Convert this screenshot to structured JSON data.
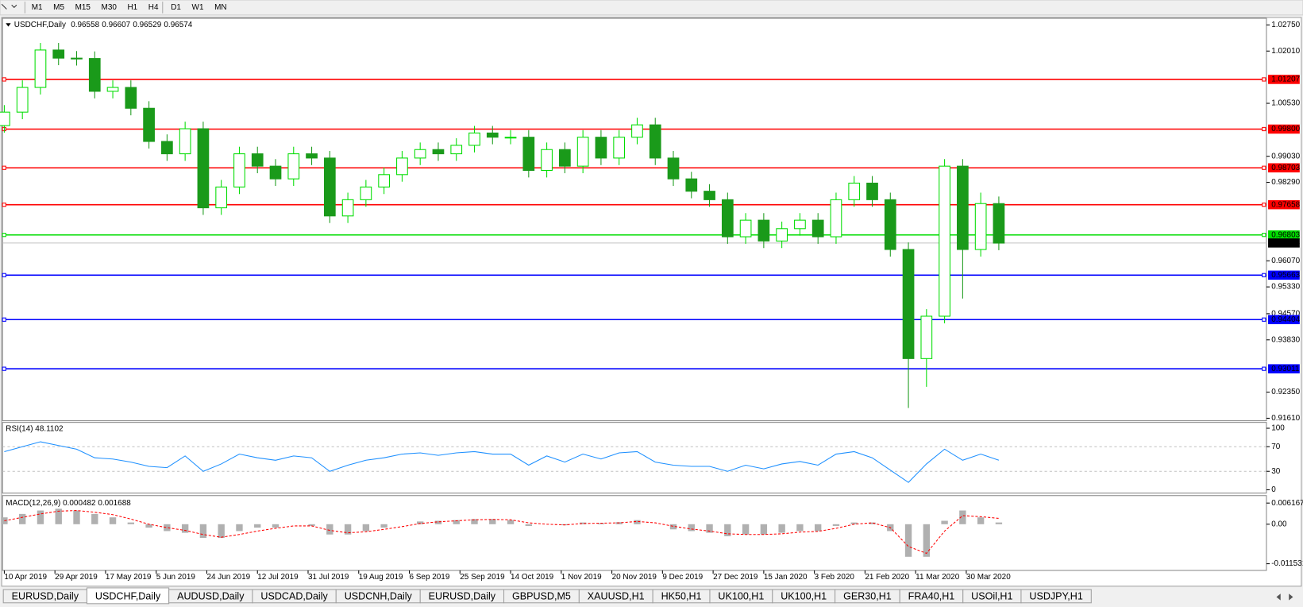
{
  "toolbar": {
    "timeframes": [
      "M1",
      "M5",
      "M15",
      "M30",
      "H1",
      "H4",
      "D1",
      "W1",
      "MN"
    ]
  },
  "tabs": {
    "items": [
      "EURUSD,Daily",
      "USDCHF,Daily",
      "AUDUSD,Daily",
      "USDCAD,Daily",
      "USDCNH,Daily",
      "EURUSD,Daily",
      "GBPUSD,M5",
      "XAUUSD,H1",
      "HK50,H1",
      "UK100,H1",
      "UK100,H1",
      "GER30,H1",
      "FRA40,H1",
      "USOil,H1",
      "USDJPY,H1"
    ],
    "active": 1
  },
  "chart_data": {
    "type": "candlestick",
    "title": "USDCHF,Daily",
    "quote": [
      0.96558,
      0.96607,
      0.96529,
      0.96574
    ],
    "up_color": "#00dd00",
    "down_color": "#1a9a1a",
    "x": [
      0,
      5,
      10,
      15,
      20,
      25,
      30,
      35,
      40,
      45,
      50,
      55,
      60,
      65,
      70,
      75,
      80,
      85,
      90,
      95,
      100,
      105,
      110,
      115,
      120,
      125,
      130,
      135,
      140,
      145,
      150,
      155,
      160,
      165,
      170,
      175,
      180,
      185,
      190,
      195,
      200,
      205,
      210,
      215,
      220,
      225,
      230,
      235,
      240,
      245,
      250,
      255,
      260,
      265,
      270,
      275
    ],
    "open": [
      0.999,
      1.0028,
      1.0098,
      1.0204,
      1.0181,
      1.018,
      1.0087,
      1.0098,
      1.0039,
      0.9945,
      0.991,
      0.9981,
      0.9757,
      0.9816,
      0.991,
      0.9875,
      0.9839,
      0.991,
      0.9898,
      0.9734,
      0.978,
      0.9816,
      0.9851,
      0.9898,
      0.9922,
      0.991,
      0.9934,
      0.9969,
      0.9957,
      0.9957,
      0.9863,
      0.9922,
      0.9875,
      0.9957,
      0.9898,
      0.9957,
      0.9992,
      0.9898,
      0.9839,
      0.9804,
      0.978,
      0.9675,
      0.9722,
      0.9663,
      0.9698,
      0.9722,
      0.9675,
      0.978,
      0.9827,
      0.978,
      0.9639,
      0.933,
      0.945,
      0.9875,
      0.9639,
      0.9769
    ],
    "high": [
      1.0048,
      1.0118,
      1.0224,
      1.0224,
      1.0201,
      1.02,
      1.0118,
      1.0118,
      1.0059,
      0.9965,
      1.0001,
      1.0001,
      0.9836,
      0.993,
      0.993,
      0.9895,
      0.993,
      0.993,
      0.9918,
      0.98,
      0.9836,
      0.9871,
      0.9918,
      0.9942,
      0.9942,
      0.9954,
      0.9989,
      0.9989,
      0.9977,
      0.9977,
      0.9942,
      0.9942,
      0.9977,
      0.9977,
      0.9977,
      1.0012,
      1.0012,
      0.9918,
      0.9859,
      0.9824,
      0.98,
      0.9742,
      0.9742,
      0.9718,
      0.9742,
      0.9742,
      0.98,
      0.9847,
      0.9847,
      0.98,
      0.9659,
      0.947,
      0.9895,
      0.9895,
      0.98,
      0.9789
    ],
    "low": [
      0.997,
      1.0008,
      1.0078,
      1.0161,
      1.016,
      1.0067,
      1.0067,
      1.0019,
      0.9925,
      0.989,
      0.989,
      0.9737,
      0.9737,
      0.9796,
      0.9855,
      0.9819,
      0.9819,
      0.9878,
      0.9714,
      0.9714,
      0.976,
      0.9796,
      0.9831,
      0.9878,
      0.989,
      0.989,
      0.9914,
      0.9937,
      0.9937,
      0.9843,
      0.9843,
      0.9855,
      0.9855,
      0.9878,
      0.9878,
      0.9937,
      0.9878,
      0.9819,
      0.9784,
      0.976,
      0.9655,
      0.9655,
      0.9643,
      0.9643,
      0.9678,
      0.9655,
      0.9655,
      0.976,
      0.976,
      0.9619,
      0.919,
      0.925,
      0.943,
      0.95,
      0.9619,
      0.9637
    ],
    "close": [
      1.0028,
      1.0098,
      1.0204,
      1.0181,
      1.018,
      1.0087,
      1.0098,
      1.0039,
      0.9945,
      0.991,
      0.9981,
      0.9757,
      0.9816,
      0.991,
      0.9875,
      0.9839,
      0.991,
      0.9898,
      0.9734,
      0.978,
      0.9816,
      0.9851,
      0.9898,
      0.9922,
      0.991,
      0.9934,
      0.9969,
      0.9957,
      0.9957,
      0.9863,
      0.9922,
      0.9875,
      0.9957,
      0.9898,
      0.9957,
      0.9992,
      0.9898,
      0.9839,
      0.9804,
      0.978,
      0.9675,
      0.9722,
      0.9663,
      0.9698,
      0.9722,
      0.9675,
      0.978,
      0.9827,
      0.978,
      0.9639,
      0.933,
      0.945,
      0.9875,
      0.9639,
      0.9769,
      0.9657
    ],
    "xlim": [
      -0.5,
      349
    ],
    "xticks": [
      {
        "value": 0,
        "label": "10 Apr 2019"
      },
      {
        "value": 14,
        "label": "29 Apr 2019"
      },
      {
        "value": 28,
        "label": "17 May 2019"
      },
      {
        "value": 42,
        "label": "5 Jun 2019"
      },
      {
        "value": 56,
        "label": "24 Jun 2019"
      },
      {
        "value": 70,
        "label": "12 Jul 2019"
      },
      {
        "value": 84,
        "label": "31 Jul 2019"
      },
      {
        "value": 98,
        "label": "19 Aug 2019"
      },
      {
        "value": 112,
        "label": "6 Sep 2019"
      },
      {
        "value": 126,
        "label": "25 Sep 2019"
      },
      {
        "value": 140,
        "label": "14 Oct 2019"
      },
      {
        "value": 154,
        "label": "1 Nov 2019"
      },
      {
        "value": 168,
        "label": "20 Nov 2019"
      },
      {
        "value": 182,
        "label": "9 Dec 2019"
      },
      {
        "value": 196,
        "label": "27 Dec 2019"
      },
      {
        "value": 210,
        "label": "15 Jan 2020"
      },
      {
        "value": 224,
        "label": "3 Feb 2020"
      },
      {
        "value": 238,
        "label": "21 Feb 2020"
      },
      {
        "value": 252,
        "label": "11 Mar 2020"
      },
      {
        "value": 266,
        "label": "30 Mar 2020"
      }
    ],
    "ylim": [
      0.91563,
      1.02938
    ],
    "yticks": [
      {
        "value": 1.0275,
        "label": "1.02750"
      },
      {
        "value": 1.0201,
        "label": "1.02010"
      },
      {
        "value": 1.0053,
        "label": "1.00530"
      },
      {
        "value": 0.9903,
        "label": "0.99030"
      },
      {
        "value": 0.9829,
        "label": "0.98290"
      },
      {
        "value": 0.9607,
        "label": "0.96070"
      },
      {
        "value": 0.9533,
        "label": "0.95330"
      },
      {
        "value": 0.9457,
        "label": "0.94570"
      },
      {
        "value": 0.9383,
        "label": "0.93830"
      },
      {
        "value": 0.9235,
        "label": "0.92350"
      },
      {
        "value": 0.9161,
        "label": "0.91610"
      }
    ],
    "levels": [
      {
        "value": 1.01207,
        "label": "1.01207",
        "color": "#ff0000"
      },
      {
        "value": 0.998,
        "label": "0.99800",
        "color": "#ff0000"
      },
      {
        "value": 0.98703,
        "label": "0.98703",
        "color": "#ff0000"
      },
      {
        "value": 0.97658,
        "label": "0.97658",
        "color": "#ff0000"
      },
      {
        "value": 0.96803,
        "label": "0.96803",
        "color": "#00dd00"
      },
      {
        "value": 0.95663,
        "label": "0.95663",
        "color": "#0000ff"
      },
      {
        "value": 0.94404,
        "label": "0.94404",
        "color": "#0000ff"
      },
      {
        "value": 0.93011,
        "label": "0.93011",
        "color": "#0000ff"
      }
    ],
    "current": {
      "value": 0.96574,
      "label": "0.96574",
      "color": "#000000"
    },
    "rsi": {
      "title": "RSI(14) 48.1102",
      "color": "#1e90ff",
      "ylim": [
        -4,
        109.5
      ],
      "yticks": [
        100,
        70,
        30,
        0
      ],
      "levels": [
        70,
        30
      ],
      "values": [
        62,
        70,
        78,
        72,
        66,
        52,
        50,
        45,
        38,
        36,
        55,
        30,
        42,
        58,
        52,
        48,
        55,
        52,
        30,
        40,
        48,
        52,
        58,
        60,
        56,
        60,
        62,
        58,
        58,
        40,
        55,
        45,
        58,
        50,
        60,
        62,
        45,
        40,
        38,
        38,
        30,
        40,
        34,
        42,
        46,
        40,
        58,
        62,
        52,
        32,
        12,
        42,
        66,
        48,
        58,
        48
      ]
    },
    "macd": {
      "title": "MACD(12,26,9) 0.000482 0.001688",
      "hist_color": "#b0b0b0",
      "signal_color": "#ff0000",
      "ylim": [
        -0.01323,
        0.00811
      ],
      "yticks": [
        0.006167,
        {
          "value": 0,
          "label": "0.00"
        },
        -0.011531
      ],
      "histogram": [
        0.002,
        0.003,
        0.004,
        0.0045,
        0.004,
        0.003,
        0.002,
        0.0005,
        -0.001,
        -0.002,
        -0.0025,
        -0.004,
        -0.004,
        -0.002,
        -0.001,
        -0.001,
        0,
        -0.0005,
        -0.003,
        -0.003,
        -0.002,
        -0.001,
        0,
        0.0008,
        0.001,
        0.0012,
        0.0015,
        0.0015,
        0.0012,
        -0.0005,
        0,
        -0.0003,
        0.0005,
        0.0003,
        0.0006,
        0.0012,
        0,
        -0.0015,
        -0.002,
        -0.0025,
        -0.0035,
        -0.003,
        -0.003,
        -0.0025,
        -0.002,
        -0.002,
        -0.0005,
        0.0005,
        0.0005,
        -0.002,
        -0.0095,
        -0.0095,
        0.001,
        0.004,
        0.002,
        0.0005
      ],
      "signal": [
        0.001,
        0.002,
        0.003,
        0.0038,
        0.004,
        0.0035,
        0.0028,
        0.0015,
        0,
        -0.001,
        -0.0018,
        -0.003,
        -0.0038,
        -0.003,
        -0.002,
        -0.0012,
        -0.0005,
        -0.0005,
        -0.0018,
        -0.0025,
        -0.0022,
        -0.0015,
        -0.0007,
        0.0002,
        0.0007,
        0.001,
        0.0013,
        0.0014,
        0.0013,
        0.0004,
        0,
        -0.0002,
        0.0002,
        0.0003,
        0.0004,
        0.0008,
        0.0004,
        -0.0006,
        -0.0014,
        -0.002,
        -0.0028,
        -0.003,
        -0.003,
        -0.0028,
        -0.0023,
        -0.0021,
        -0.0012,
        0,
        0.0004,
        -0.001,
        -0.0065,
        -0.0085,
        -0.002,
        0.0025,
        0.0022,
        0.0017
      ]
    }
  }
}
